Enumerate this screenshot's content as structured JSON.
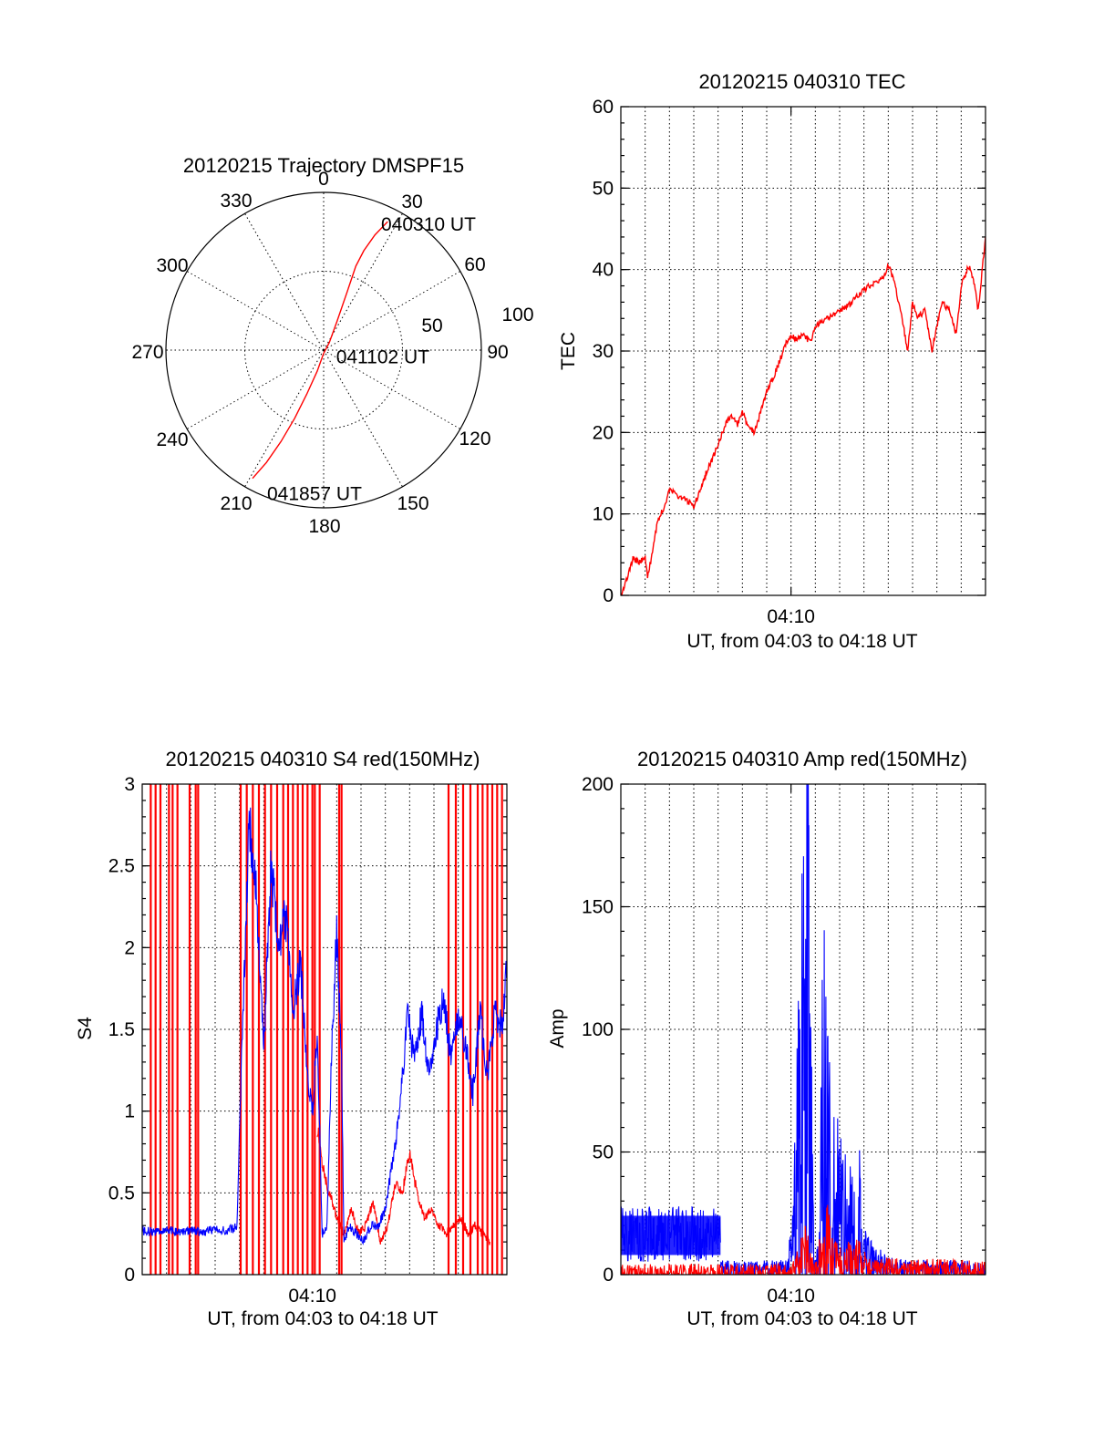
{
  "colors": {
    "red": "#ff0000",
    "blue": "#0000ff",
    "axis": "#000000",
    "background": "#ffffff"
  },
  "chart_data": [
    {
      "id": "trajectory",
      "type": "polar",
      "title": "20120215 Trajectory DMSPF15",
      "angle_labels": [
        "0",
        "30",
        "60",
        "90",
        "120",
        "150",
        "180",
        "210",
        "240",
        "270",
        "300",
        "330"
      ],
      "radius_labels": [
        "50",
        "100"
      ],
      "rmax": 100,
      "grid": true,
      "series": [
        {
          "color": "red",
          "points": [
            [
              26.5,
              91
            ],
            [
              24,
              80
            ],
            [
              22,
              68
            ],
            [
              21,
              57
            ],
            [
              22,
              40
            ],
            [
              25,
              20
            ],
            [
              37,
              6
            ],
            [
              100,
              1
            ],
            [
              180,
              2
            ],
            [
              197,
              14
            ],
            [
              201,
              30
            ],
            [
              203,
              47
            ],
            [
              205,
              64
            ],
            [
              207,
              80
            ],
            [
              209,
              93
            ]
          ]
        }
      ],
      "annotations": [
        {
          "text": "040310 UT",
          "at": [
            26.5,
            91
          ]
        },
        {
          "text": "041102 UT",
          "at": [
            100,
            1
          ]
        },
        {
          "text": "041857 UT",
          "at": [
            209,
            93
          ]
        }
      ]
    },
    {
      "id": "tec",
      "type": "line",
      "title": "20120215 040310 TEC",
      "ylabel": "TEC",
      "xlabel": "UT, from 04:03 to 04:18 UT",
      "xticks": [
        {
          "t": 7,
          "label": "04:10"
        }
      ],
      "yticks": [
        "0",
        "10",
        "20",
        "30",
        "40",
        "50",
        "60"
      ],
      "xlim": [
        0,
        15
      ],
      "ylim": [
        0,
        60
      ],
      "grid": true,
      "series": [
        {
          "color": "red",
          "x": [
            0,
            0.3,
            0.5,
            0.8,
            1.0,
            1.1,
            1.3,
            1.5,
            1.8,
            2.0,
            2.2,
            2.5,
            2.8,
            3.0,
            3.3,
            3.5,
            3.8,
            4.0,
            4.3,
            4.5,
            4.8,
            5.0,
            5.2,
            5.5,
            5.8,
            6.0,
            6.3,
            6.5,
            6.8,
            7.0,
            7.2,
            7.5,
            7.8,
            8.0,
            8.2,
            8.5,
            8.8,
            9.0,
            9.3,
            9.5,
            9.8,
            10.0,
            10.2,
            10.5,
            10.8,
            11.0,
            11.2,
            11.5,
            11.8,
            12.0,
            12.2,
            12.5,
            12.8,
            13.0,
            13.2,
            13.5,
            13.8,
            14.0,
            14.3,
            14.5,
            14.7,
            15.0
          ],
          "y": [
            0,
            2.5,
            4.5,
            4.0,
            5.0,
            2.0,
            5.5,
            9.0,
            11.0,
            13.0,
            12.5,
            12.0,
            11.5,
            11.0,
            13.0,
            15.0,
            17.0,
            18.5,
            21.0,
            22.0,
            21.0,
            22.5,
            21.0,
            20.0,
            23.0,
            25.0,
            27.0,
            28.5,
            31.0,
            32.0,
            31.5,
            32.0,
            31.0,
            33.0,
            33.5,
            34.0,
            34.5,
            35.0,
            35.5,
            36.0,
            37.0,
            37.5,
            38.0,
            38.5,
            39.0,
            40.5,
            39.0,
            35.0,
            30.0,
            36.0,
            34.0,
            35.0,
            30.0,
            33.0,
            36.0,
            35.0,
            32.0,
            38.0,
            40.5,
            39.0,
            35.0,
            44.0
          ]
        }
      ]
    },
    {
      "id": "s4",
      "type": "line",
      "title": "20120215 040310 S4 red(150MHz)",
      "ylabel": "S4",
      "xlabel": "UT, from 04:03 to 04:18 UT",
      "xticks": [
        {
          "t": 7,
          "label": "04:10"
        }
      ],
      "yticks": [
        "0",
        "0.5",
        "1",
        "1.5",
        "2",
        "2.5",
        "3"
      ],
      "xlim": [
        0,
        15
      ],
      "ylim": [
        0,
        3
      ],
      "grid": true,
      "series": [
        {
          "color": "red",
          "spikes_t": [
            0.35,
            0.55,
            0.75,
            1.1,
            1.25,
            1.45,
            1.95,
            2.2,
            2.3,
            4.05,
            4.3,
            4.55,
            4.8,
            5.05,
            5.3,
            5.55,
            5.8,
            6.0,
            6.2,
            6.4,
            6.6,
            6.8,
            7.0,
            7.1,
            7.3,
            8.1,
            8.2,
            12.6,
            12.9,
            13.2,
            13.5,
            13.8,
            14.0,
            14.2,
            14.4,
            14.6,
            14.8
          ],
          "x": [
            7.2,
            7.5,
            7.7,
            8.0,
            8.3,
            8.6,
            8.9,
            9.2,
            9.5,
            9.8,
            10.1,
            10.4,
            10.7,
            11.0,
            11.3,
            11.6,
            11.9,
            12.2,
            12.5,
            12.8,
            13.1,
            13.4,
            13.7,
            14.0,
            14.3
          ],
          "y": [
            0.9,
            0.6,
            0.5,
            0.35,
            0.25,
            0.4,
            0.25,
            0.3,
            0.45,
            0.2,
            0.3,
            0.55,
            0.5,
            0.75,
            0.5,
            0.35,
            0.4,
            0.3,
            0.25,
            0.3,
            0.35,
            0.25,
            0.3,
            0.25,
            0.2
          ]
        },
        {
          "color": "blue",
          "x": [
            0,
            0.5,
            1.0,
            1.5,
            2.0,
            2.5,
            3.0,
            3.5,
            3.9,
            4.1,
            4.4,
            4.7,
            5.0,
            5.3,
            5.6,
            5.9,
            6.2,
            6.5,
            6.8,
            7.0,
            7.2,
            7.4,
            7.6,
            7.8,
            8.0,
            8.2,
            8.3,
            8.5,
            8.8,
            9.1,
            9.4,
            9.7,
            10.0,
            10.3,
            10.6,
            10.9,
            11.2,
            11.5,
            11.8,
            12.1,
            12.4,
            12.7,
            13.0,
            13.3,
            13.6,
            13.9,
            14.2,
            14.5,
            14.8,
            15.0
          ],
          "y": [
            0.27,
            0.26,
            0.28,
            0.26,
            0.27,
            0.26,
            0.28,
            0.27,
            0.29,
            1.4,
            2.8,
            2.3,
            1.4,
            2.5,
            2.0,
            2.2,
            1.6,
            1.9,
            1.2,
            1.0,
            1.5,
            0.25,
            0.3,
            1.4,
            2.1,
            1.3,
            0.2,
            0.3,
            0.25,
            0.2,
            0.3,
            0.3,
            0.4,
            0.7,
            1.0,
            1.6,
            1.3,
            1.6,
            1.2,
            1.5,
            1.7,
            1.3,
            1.6,
            1.4,
            1.1,
            1.6,
            1.2,
            1.6,
            1.5,
            1.9
          ]
        }
      ]
    },
    {
      "id": "amp",
      "type": "line",
      "title": "20120215 040310 Amp red(150MHz)",
      "ylabel": "Amp",
      "xlabel": "UT, from 04:03 to 04:18 UT",
      "xticks": [
        {
          "t": 7,
          "label": "04:10"
        }
      ],
      "yticks": [
        "0",
        "50",
        "100",
        "150",
        "200"
      ],
      "xlim": [
        0,
        15
      ],
      "ylim": [
        0,
        200
      ],
      "grid": true,
      "series": [
        {
          "color": "blue",
          "band": {
            "x0": 0,
            "x1": 4.1,
            "low": 5,
            "high": 28
          },
          "x": [
            4.1,
            5.0,
            6.0,
            6.8,
            7.0,
            7.3,
            7.5,
            7.7,
            7.8,
            7.9,
            8.0,
            8.1,
            8.2,
            8.3,
            8.4,
            8.5,
            8.6,
            8.7,
            8.8,
            9.0,
            9.2,
            9.5,
            9.8,
            10.0,
            10.5,
            11.0,
            12.0,
            13.0,
            14.0,
            15.0
          ],
          "y": [
            2,
            1.5,
            2,
            2,
            8,
            55,
            75,
            108,
            60,
            20,
            3,
            5,
            40,
            65,
            58,
            45,
            35,
            28,
            30,
            25,
            22,
            18,
            25,
            8,
            5,
            3,
            2,
            2,
            2,
            1.5
          ]
        },
        {
          "color": "red",
          "x": [
            0,
            7.0,
            7.4,
            7.6,
            7.8,
            8.0,
            8.2,
            8.5,
            8.8,
            9.2,
            9.6,
            10.0,
            10.5,
            11.0,
            12.0,
            13.0,
            14.0,
            15.0
          ],
          "y": [
            0.5,
            0.5,
            6,
            10,
            4,
            2,
            8,
            12,
            6,
            4,
            8,
            4,
            2,
            3,
            2,
            2.5,
            2,
            1.5
          ]
        }
      ]
    }
  ]
}
